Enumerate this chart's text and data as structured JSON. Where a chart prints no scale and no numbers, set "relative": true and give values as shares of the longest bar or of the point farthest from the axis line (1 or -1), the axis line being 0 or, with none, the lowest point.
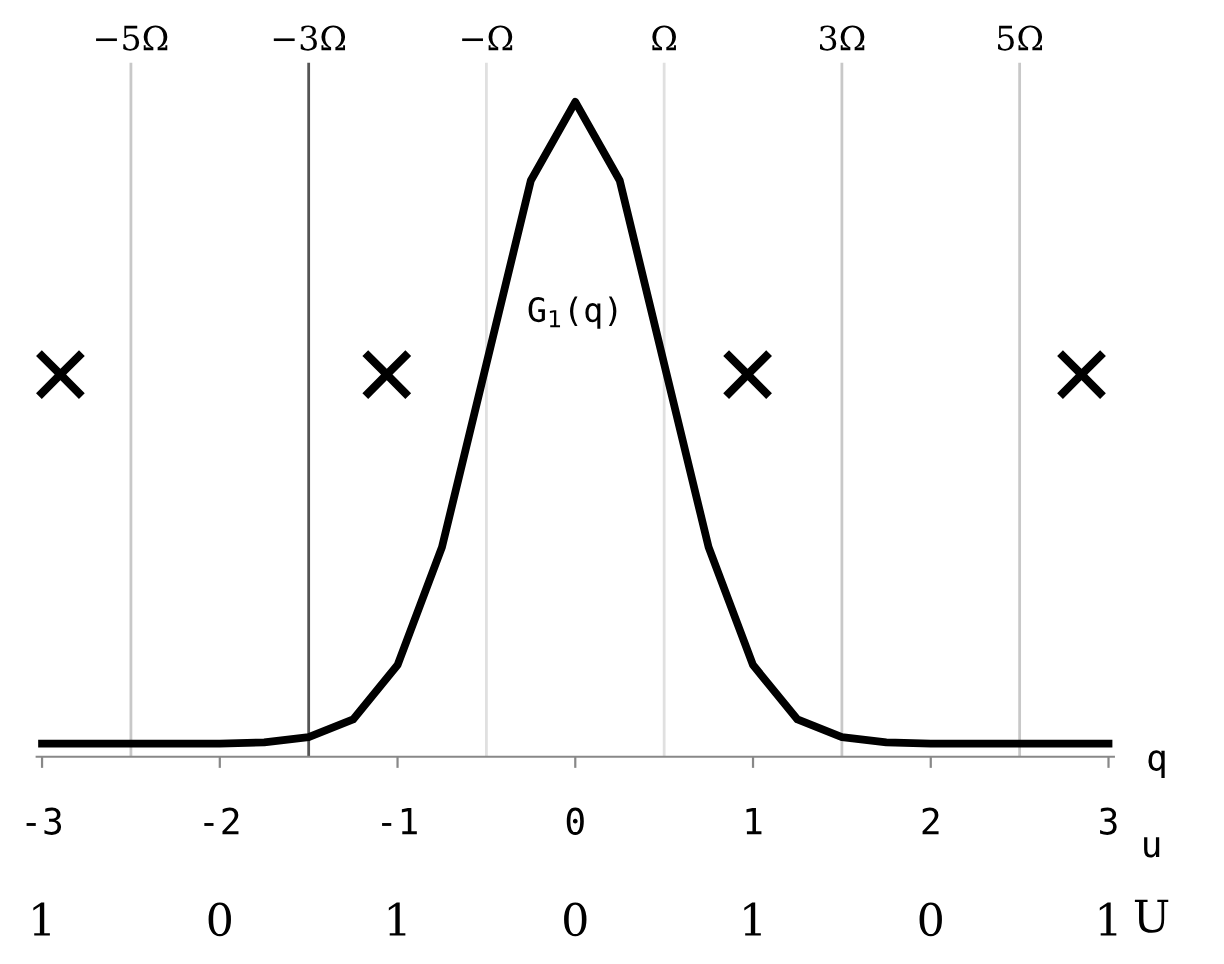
{
  "chart_data": {
    "type": "line",
    "relative": true,
    "xlabel": "q",
    "x": [
      -3,
      -2.5,
      -2,
      -1.75,
      -1.5,
      -1.25,
      -1,
      -0.75,
      -0.5,
      -0.25,
      0,
      0.25,
      0.5,
      0.75,
      1,
      1.25,
      1.5,
      1.75,
      2,
      2.5,
      3
    ],
    "series": [
      {
        "color": "#000000",
        "values": [
          0.02,
          0.02,
          0.02,
          0.022,
          0.03,
          0.057,
          0.14,
          0.32,
          0.6,
          0.88,
          1,
          0.88,
          0.6,
          0.32,
          0.14,
          0.057,
          0.03,
          0.022,
          0.02,
          0.02,
          0.02
        ]
      }
    ],
    "xlim": [
      -3.03,
      3.03
    ],
    "xticks": [
      {
        "value": -3,
        "label": "-3"
      },
      {
        "value": -2,
        "label": "-2"
      },
      {
        "value": -1,
        "label": "-1"
      },
      0,
      1,
      2,
      3
    ],
    "x2lim": [
      -6.06,
      6.06
    ],
    "x2ticks": [
      {
        "value": -5,
        "label": "−5Ω"
      },
      {
        "value": -3,
        "label": "−3Ω"
      },
      {
        "value": -1,
        "label": "−Ω"
      },
      {
        "value": 1,
        "label": "Ω"
      },
      {
        "value": 3,
        "label": "3Ω"
      },
      {
        "value": 5,
        "label": "5Ω"
      }
    ],
    "ref_lines": [
      {
        "axis": "x",
        "value": -2.5,
        "color": "#c8c8c8"
      },
      {
        "axis": "x",
        "value": -1.5,
        "color": "#555555"
      },
      {
        "axis": "x",
        "value": -0.5,
        "color": "#e0e0e0"
      },
      {
        "axis": "x",
        "value": 0.5,
        "color": "#e0e0e0"
      },
      {
        "axis": "x",
        "value": 1.5,
        "color": "#c8c8c8"
      },
      {
        "axis": "x",
        "value": 2.5,
        "color": "#c8c8c8"
      }
    ],
    "annotations": [
      "G$_{1}$(q)",
      "✕",
      "✕",
      "✕",
      "✕",
      "u",
      "1",
      "0",
      "1",
      "0",
      "1",
      "0",
      "1",
      "U"
    ],
    "grid": false,
    "legend": false
  }
}
